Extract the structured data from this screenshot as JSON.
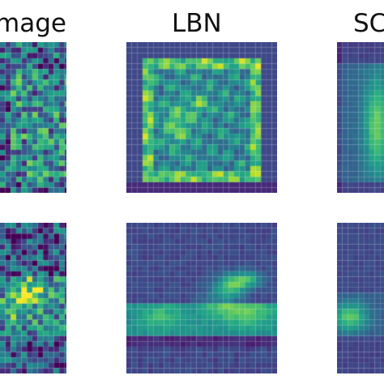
{
  "columns": [
    {
      "label": "mage"
    },
    {
      "label": "LBN"
    },
    {
      "label": "SC"
    }
  ],
  "rows": [
    {
      "panels": [
        {
          "content": "noisy-input",
          "colormap": "viridis"
        },
        {
          "content": "bag-reconstruction",
          "colormap": "viridis"
        },
        {
          "content": "blurred-reconstruction",
          "colormap": "viridis"
        }
      ]
    },
    {
      "panels": [
        {
          "content": "noisy-input",
          "colormap": "viridis"
        },
        {
          "content": "shoe-reconstruction",
          "colormap": "viridis"
        },
        {
          "content": "blurred-reconstruction",
          "colormap": "viridis"
        }
      ]
    }
  ],
  "colors": {
    "viridis_low": "#440154",
    "viridis_mid": "#21918c",
    "viridis_high": "#fde725"
  }
}
